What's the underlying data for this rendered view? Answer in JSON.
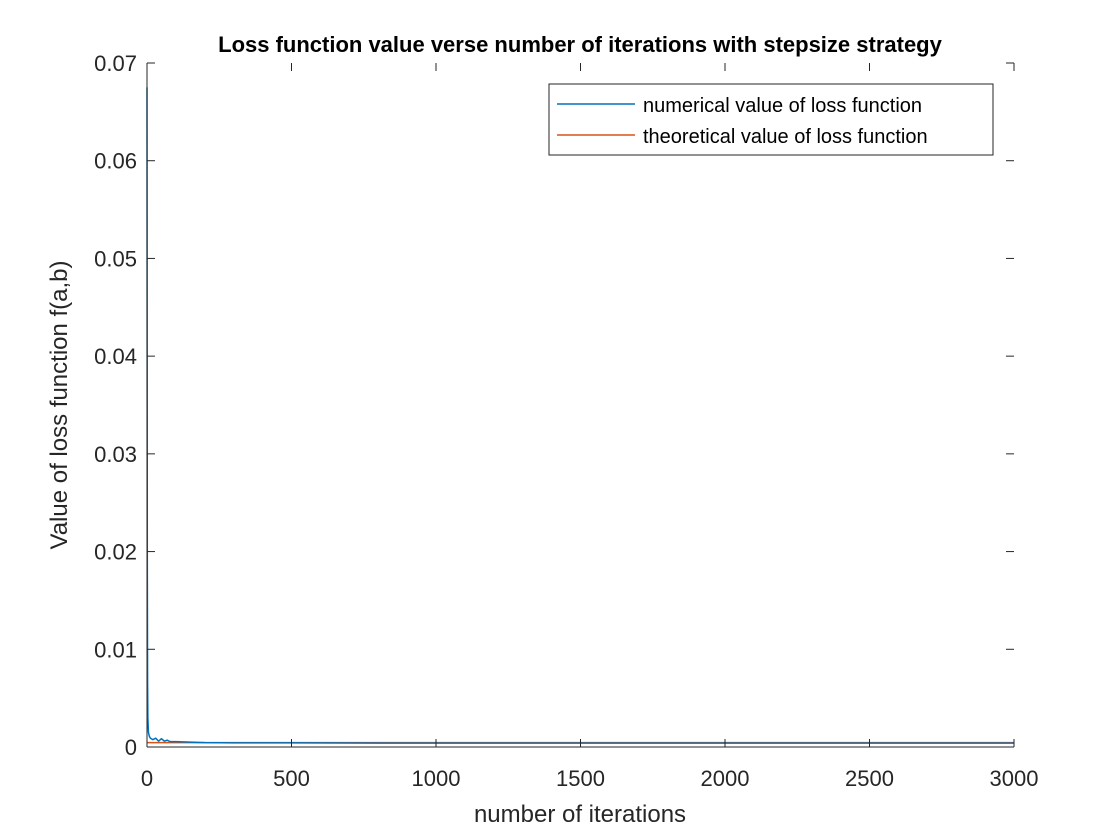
{
  "chart_data": {
    "type": "line",
    "title": "Loss function value verse number of iterations with stepsize strategy",
    "xlabel": "number of iterations",
    "ylabel": "Value of loss function f(a,b)",
    "xlim": [
      0,
      3000
    ],
    "ylim": [
      0,
      0.07
    ],
    "xticks": [
      0,
      500,
      1000,
      1500,
      2000,
      2500,
      3000
    ],
    "xtick_labels": [
      "0",
      "500",
      "1000",
      "1500",
      "2000",
      "2500",
      "3000"
    ],
    "yticks": [
      0,
      0.01,
      0.02,
      0.03,
      0.04,
      0.05,
      0.06,
      0.07
    ],
    "ytick_labels": [
      "0",
      "0.01",
      "0.02",
      "0.03",
      "0.04",
      "0.05",
      "0.06",
      "0.07"
    ],
    "grid": false,
    "legend_position": "top-right",
    "series": [
      {
        "name": "numerical value of loss function",
        "color": "#0072BD",
        "x": [
          0,
          1,
          2,
          3,
          5,
          8,
          12,
          20,
          30,
          40,
          50,
          60,
          70,
          80,
          100,
          150,
          200,
          300,
          500,
          800,
          1000,
          1500,
          2000,
          2500,
          3000
        ],
        "y": [
          0.0675,
          0.02,
          0.0068,
          0.003,
          0.0015,
          0.0011,
          0.0009,
          0.00075,
          0.0009,
          0.0006,
          0.00085,
          0.0006,
          0.0007,
          0.00055,
          0.00055,
          0.0005,
          0.00045,
          0.00042,
          0.00042,
          0.0004,
          0.0004,
          0.0004,
          0.0004,
          0.0004,
          0.0004
        ]
      },
      {
        "name": "theoretical value of loss function",
        "color": "#D95319",
        "x": [
          0,
          3000
        ],
        "y": [
          0.00045,
          0.00045
        ]
      }
    ]
  }
}
